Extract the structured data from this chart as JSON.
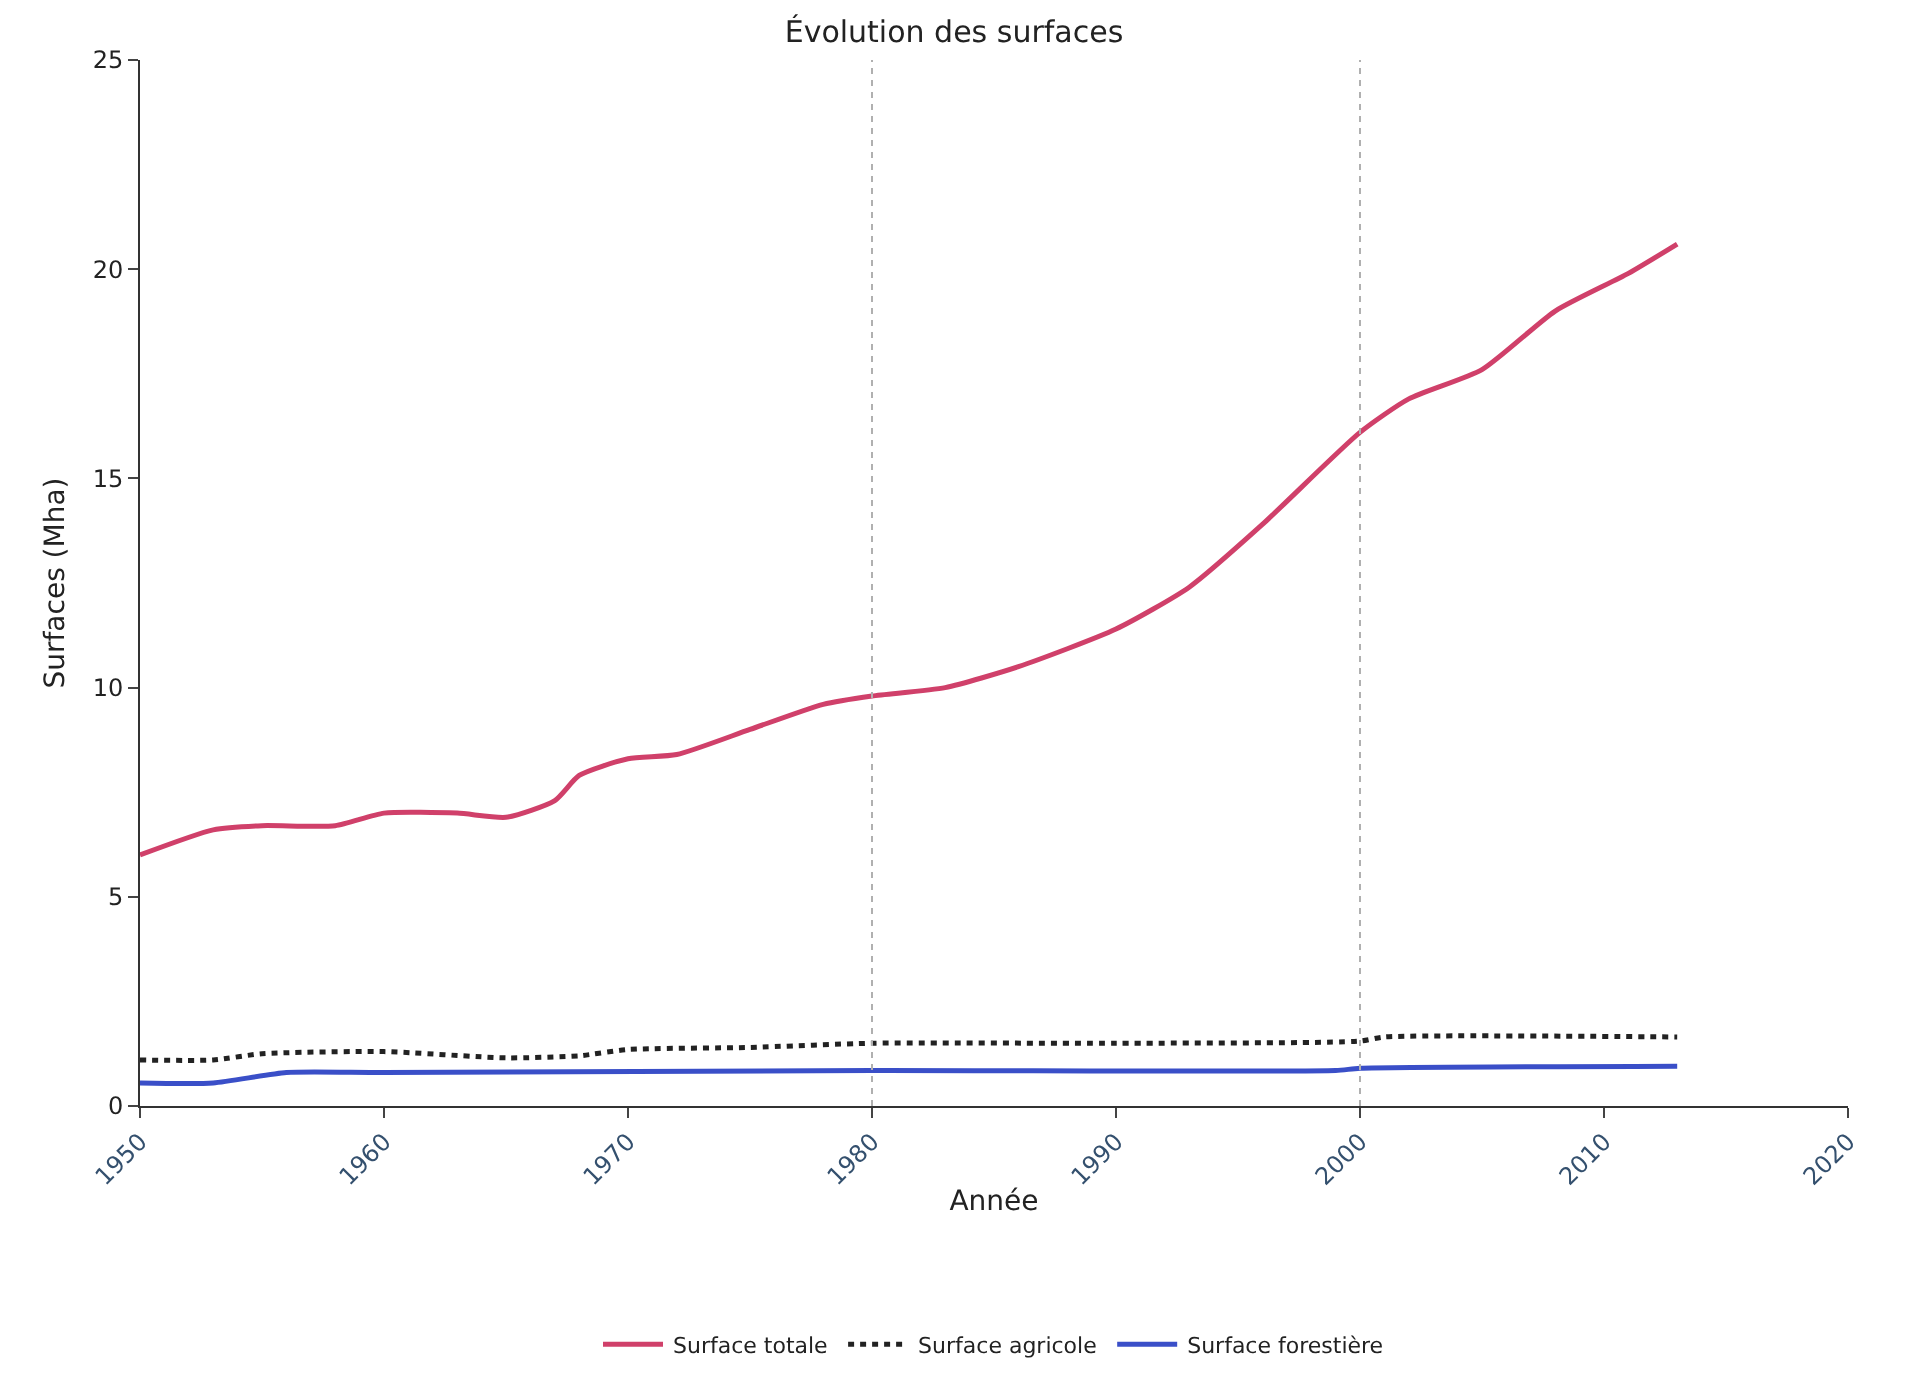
{
  "chart_data": {
    "type": "line",
    "title": "Évolution des surfaces",
    "xlabel": "Année",
    "ylabel": "Surfaces (Mha)",
    "xlim": [
      1950,
      2020
    ],
    "xticks": [
      1950,
      1960,
      1970,
      1980,
      1990,
      2000,
      2010,
      2020
    ],
    "ylim": [
      0,
      25
    ],
    "yticks": [
      0,
      5,
      10,
      15,
      20,
      25
    ],
    "legend": "bottom",
    "grid": false,
    "ref_lines": [
      {
        "axis": "x",
        "value": 1980,
        "color": "#b0b0b0",
        "line_style": "dotted"
      },
      {
        "axis": "x",
        "value": 2000,
        "color": "#b0b0b0",
        "line_style": "dotted"
      }
    ],
    "series": [
      {
        "name": "Surface totale",
        "color": "#d0406a",
        "line_style": "solid",
        "x": [
          1950,
          1953,
          1955,
          1958,
          1960,
          1963,
          1965,
          1967,
          1968,
          1970,
          1972,
          1975,
          1978,
          1980,
          1983,
          1986,
          1990,
          1993,
          1996,
          2000,
          2002,
          2005,
          2008,
          2011,
          2013
        ],
        "values": [
          6.0,
          6.6,
          6.7,
          6.7,
          7.0,
          7.0,
          6.9,
          7.3,
          7.9,
          8.3,
          8.4,
          9.0,
          9.6,
          9.8,
          10.0,
          10.5,
          11.4,
          12.4,
          13.9,
          16.1,
          16.9,
          17.6,
          19.0,
          19.9,
          20.6
        ]
      },
      {
        "name": "Surface agricole",
        "color": "#222222",
        "line_style": "dotted",
        "x": [
          1950,
          1953,
          1955,
          1960,
          1965,
          1968,
          1970,
          1975,
          1980,
          1990,
          2000,
          2001,
          2013
        ],
        "values": [
          1.1,
          1.1,
          1.25,
          1.3,
          1.15,
          1.2,
          1.35,
          1.4,
          1.5,
          1.5,
          1.55,
          1.65,
          1.65
        ]
      },
      {
        "name": "Surface forestière",
        "color": "#3a4fc8",
        "line_style": "solid",
        "x": [
          1950,
          1953,
          1956,
          1960,
          1980,
          1999,
          2000,
          2013
        ],
        "values": [
          0.55,
          0.55,
          0.8,
          0.8,
          0.85,
          0.85,
          0.9,
          0.95
        ]
      }
    ]
  }
}
